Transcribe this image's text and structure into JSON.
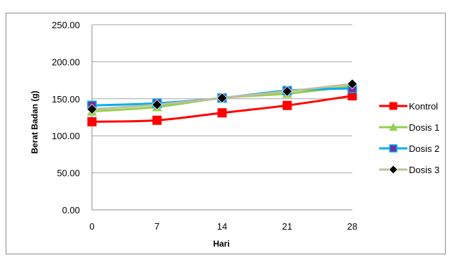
{
  "chart_data": {
    "type": "line",
    "title": "",
    "xlabel": "Hari",
    "ylabel": "Berat Badan (g)",
    "x": [
      "0",
      "7",
      "14",
      "21",
      "28"
    ],
    "ylim": [
      0,
      250
    ],
    "y_ticks": [
      "0.00",
      "50.00",
      "100.00",
      "150.00",
      "200.00",
      "250.00"
    ],
    "y_tick_values": [
      0,
      50,
      100,
      150,
      200,
      250
    ],
    "grid": "horizontal",
    "legend_position": "right",
    "series": [
      {
        "name": "Kontrol",
        "color": "#ff0000",
        "marker": "square",
        "values": [
          119,
          121,
          131,
          141,
          154
        ]
      },
      {
        "name": "Dosis 1",
        "color": "#92d050",
        "marker": "triangle",
        "values": [
          133,
          139,
          151,
          157,
          167
        ]
      },
      {
        "name": "Dosis 2",
        "color": "#00b0f0",
        "marker": "square-purple",
        "marker_color": "#7030a0",
        "values": [
          141,
          144,
          151,
          161,
          164
        ]
      },
      {
        "name": "Dosis 3",
        "color": "#c4bd97",
        "marker": "diamond",
        "marker_color": "#000000",
        "values": [
          136,
          142,
          151,
          160,
          170
        ]
      }
    ]
  }
}
